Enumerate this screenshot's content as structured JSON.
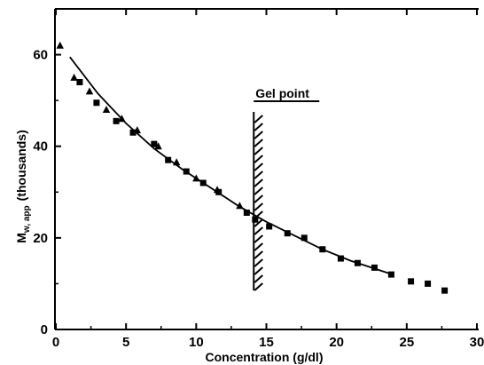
{
  "chart_data": {
    "type": "scatter",
    "title": "",
    "xlabel": "Concentration (g/dl)",
    "ylabel_main": "M",
    "ylabel_sub": "w, app",
    "ylabel_units": "(thousands)",
    "xlim": [
      0,
      30
    ],
    "ylim": [
      0,
      70
    ],
    "xticks": [
      0,
      5,
      10,
      15,
      20,
      25,
      30
    ],
    "xtick_labels": [
      "0",
      "5",
      "10",
      "15",
      "20",
      "25",
      "30"
    ],
    "yticks": [
      0,
      20,
      40,
      60
    ],
    "ytick_labels": [
      "0",
      "20",
      "40",
      "60"
    ],
    "grid": false,
    "legend": "none",
    "annotation": {
      "label": "Gel point",
      "x": 14.1,
      "y_range": [
        8.5,
        47.5
      ]
    },
    "series": [
      {
        "marker": "triangle",
        "points": [
          [
            0.3,
            62.0
          ],
          [
            1.3,
            55.0
          ],
          [
            2.4,
            52.0
          ],
          [
            3.6,
            48.0
          ],
          [
            4.7,
            46.0
          ],
          [
            5.8,
            43.5
          ],
          [
            7.3,
            40.0
          ],
          [
            8.6,
            36.5
          ],
          [
            10.0,
            33.0
          ],
          [
            11.5,
            30.5
          ],
          [
            13.1,
            27.0
          ]
        ]
      },
      {
        "marker": "square",
        "points": [
          [
            1.7,
            54.0
          ],
          [
            2.9,
            49.5
          ],
          [
            4.3,
            45.5
          ],
          [
            5.5,
            43.0
          ],
          [
            7.0,
            40.5
          ],
          [
            8.0,
            37.0
          ],
          [
            9.3,
            34.5
          ],
          [
            10.5,
            32.0
          ],
          [
            11.6,
            30.0
          ],
          [
            13.6,
            25.5
          ],
          [
            14.2,
            24.0
          ],
          [
            15.2,
            22.5
          ],
          [
            16.5,
            21.0
          ],
          [
            17.7,
            20.0
          ],
          [
            19.0,
            17.5
          ],
          [
            20.3,
            15.5
          ],
          [
            21.5,
            14.5
          ],
          [
            22.7,
            13.5
          ],
          [
            23.9,
            12.0
          ],
          [
            25.3,
            10.5
          ],
          [
            26.5,
            10.0
          ],
          [
            27.7,
            8.5
          ]
        ]
      }
    ],
    "fit_curve": {
      "style": "solid",
      "points": [
        [
          1,
          59.5
        ],
        [
          3,
          51.5
        ],
        [
          5,
          45.0
        ],
        [
          7,
          39.5
        ],
        [
          9,
          35.0
        ],
        [
          11,
          31.0
        ],
        [
          13,
          27.0
        ],
        [
          15,
          23.5
        ],
        [
          17,
          20.5
        ],
        [
          19,
          17.5
        ],
        [
          21,
          15.0
        ],
        [
          22.5,
          13.5
        ],
        [
          24,
          12.0
        ]
      ]
    }
  }
}
